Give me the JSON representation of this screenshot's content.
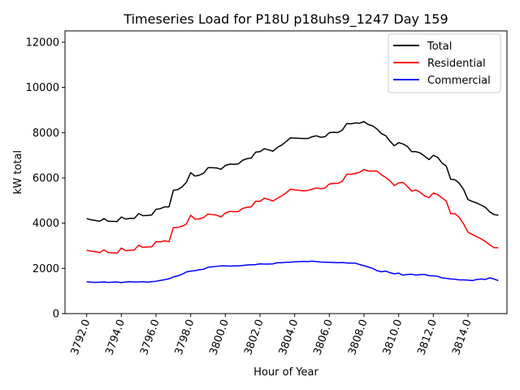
{
  "chart_data": {
    "type": "line",
    "title": "Timeseries Load for P18U p18uhs9_1247  Day 159",
    "xlabel": "Hour of Year",
    "ylabel": "kW total",
    "xlim": [
      3790.75,
      3816.25
    ],
    "ylim": [
      0,
      12500
    ],
    "xticks": [
      3792.0,
      3794.0,
      3796.0,
      3798.0,
      3800.0,
      3802.0,
      3804.0,
      3806.0,
      3808.0,
      3810.0,
      3812.0,
      3814.0
    ],
    "xtick_labels": [
      "3792.0",
      "3794.0",
      "3796.0",
      "3798.0",
      "3800.0",
      "3802.0",
      "3804.0",
      "3806.0",
      "3808.0",
      "3810.0",
      "3812.0",
      "3814.0"
    ],
    "yticks": [
      0,
      2000,
      4000,
      6000,
      8000,
      10000,
      12000
    ],
    "ytick_labels": [
      "0",
      "2000",
      "4000",
      "6000",
      "8000",
      "10000",
      "12000"
    ],
    "legend_position": "top-right",
    "x_start": 3792.0,
    "x_step": 0.25,
    "series": [
      {
        "name": "Total",
        "color": "#000000",
        "values": [
          4200,
          4150,
          4120,
          4080,
          4200,
          4080,
          4080,
          4070,
          4270,
          4180,
          4210,
          4210,
          4420,
          4330,
          4340,
          4360,
          4610,
          4640,
          4720,
          4720,
          5450,
          5480,
          5600,
          5800,
          6230,
          6080,
          6120,
          6210,
          6450,
          6450,
          6440,
          6380,
          6550,
          6610,
          6600,
          6620,
          6780,
          6850,
          6880,
          7140,
          7160,
          7290,
          7240,
          7180,
          7350,
          7450,
          7600,
          7770,
          7760,
          7750,
          7740,
          7740,
          7820,
          7860,
          7800,
          7820,
          8000,
          8020,
          8010,
          8110,
          8400,
          8390,
          8430,
          8420,
          8490,
          8360,
          8300,
          8160,
          7960,
          7870,
          7620,
          7420,
          7560,
          7500,
          7390,
          7160,
          7160,
          7100,
          6960,
          6810,
          7000,
          6910,
          6660,
          6520,
          5940,
          5920,
          5760,
          5480,
          5040,
          4960,
          4890,
          4800,
          4700,
          4500,
          4380,
          4350
        ]
      },
      {
        "name": "Residential",
        "color": "#ff0000",
        "values": [
          2800,
          2760,
          2740,
          2700,
          2820,
          2700,
          2690,
          2670,
          2900,
          2780,
          2800,
          2810,
          3020,
          2930,
          2950,
          2950,
          3180,
          3170,
          3220,
          3180,
          3800,
          3810,
          3860,
          3960,
          4350,
          4180,
          4190,
          4250,
          4400,
          4380,
          4350,
          4270,
          4450,
          4520,
          4510,
          4510,
          4650,
          4700,
          4720,
          4970,
          4960,
          5100,
          5050,
          4980,
          5100,
          5200,
          5330,
          5500,
          5470,
          5450,
          5430,
          5440,
          5500,
          5560,
          5520,
          5550,
          5730,
          5760,
          5760,
          5850,
          6160,
          6160,
          6200,
          6250,
          6370,
          6300,
          6310,
          6300,
          6140,
          6020,
          5870,
          5660,
          5780,
          5800,
          5630,
          5420,
          5470,
          5360,
          5200,
          5130,
          5330,
          5260,
          5120,
          4970,
          4420,
          4420,
          4250,
          3960,
          3600,
          3500,
          3400,
          3310,
          3190,
          3040,
          2920,
          2910
        ]
      },
      {
        "name": "Commercial",
        "color": "#0000ff",
        "values": [
          1410,
          1390,
          1380,
          1390,
          1400,
          1380,
          1390,
          1400,
          1370,
          1400,
          1410,
          1400,
          1400,
          1410,
          1390,
          1410,
          1430,
          1470,
          1500,
          1540,
          1620,
          1670,
          1740,
          1840,
          1880,
          1900,
          1940,
          1960,
          2050,
          2070,
          2090,
          2110,
          2110,
          2100,
          2110,
          2110,
          2130,
          2150,
          2160,
          2170,
          2200,
          2190,
          2190,
          2200,
          2250,
          2250,
          2270,
          2270,
          2290,
          2300,
          2310,
          2300,
          2320,
          2300,
          2280,
          2270,
          2270,
          2260,
          2250,
          2260,
          2240,
          2230,
          2230,
          2170,
          2120,
          2060,
          2000,
          1900,
          1850,
          1880,
          1810,
          1760,
          1790,
          1700,
          1730,
          1740,
          1700,
          1730,
          1730,
          1680,
          1670,
          1650,
          1580,
          1560,
          1530,
          1520,
          1490,
          1490,
          1480,
          1460,
          1510,
          1530,
          1510,
          1580,
          1530,
          1460
        ]
      }
    ]
  }
}
